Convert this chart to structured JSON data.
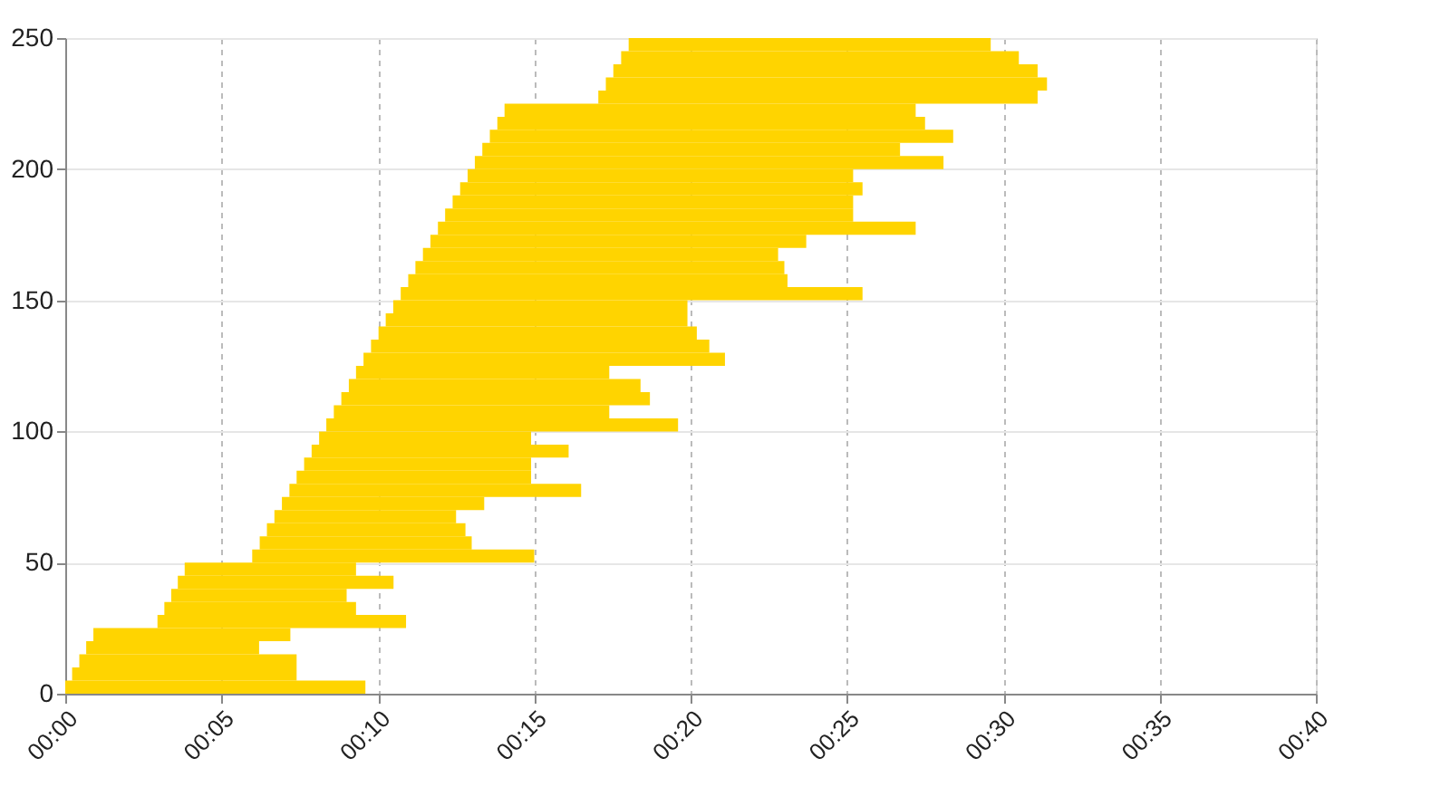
{
  "chart_data": {
    "type": "bar",
    "orientation": "horizontal",
    "color": "#ffd400",
    "x": [
      2.5,
      7.5,
      12.5,
      17.5,
      22.5,
      27.5,
      32.5,
      37.5,
      42.5,
      47.5,
      52.5,
      57.5,
      62.5,
      67.5,
      72.5,
      77.5,
      82.5,
      87.5,
      92.5,
      97.5,
      102.5,
      107.5,
      112.5,
      117.5,
      122.5,
      127.5,
      132.5,
      137.5,
      142.5,
      147.5,
      152.5,
      157.5,
      162.5,
      167.5,
      172.5,
      177.5,
      182.5,
      187.5,
      192.5,
      197.5,
      202.5,
      207.5,
      212.5,
      217.5,
      222.5,
      227.5,
      232.5,
      237.5,
      242.5,
      247.5
    ],
    "base": [
      0,
      0.22,
      0.45,
      0.67,
      0.9,
      2.95,
      3.17,
      3.39,
      3.6,
      3.82,
      5.98,
      6.22,
      6.45,
      6.69,
      6.93,
      7.17,
      7.4,
      7.64,
      7.88,
      8.12,
      8.35,
      8.59,
      8.83,
      9.07,
      9.3,
      9.54,
      9.78,
      10.02,
      10.25,
      10.49,
      10.73,
      10.97,
      11.2,
      11.44,
      11.68,
      11.92,
      12.15,
      12.39,
      12.63,
      12.87,
      13.1,
      13.34,
      13.58,
      13.82,
      14.05,
      17.05,
      17.29,
      17.53,
      17.78,
      18.02
    ],
    "values": [
      9.6,
      7.18,
      6.95,
      5.53,
      6.3,
      7.95,
      6.13,
      5.61,
      6.9,
      5.48,
      9.02,
      6.78,
      6.35,
      5.81,
      6.47,
      9.33,
      7.5,
      7.26,
      8.22,
      6.78,
      11.25,
      8.81,
      9.87,
      9.33,
      8.1,
      11.56,
      10.82,
      10.18,
      9.65,
      9.41,
      14.77,
      12.13,
      11.8,
      11.36,
      12.02,
      15.28,
      13.05,
      12.81,
      12.87,
      12.33,
      14.99,
      13.36,
      14.82,
      13.68,
      13.15,
      14.05,
      14.11,
      13.57,
      12.72,
      11.58
    ],
    "xlim": [
      0,
      40
    ],
    "xticks": [
      {
        "value": 0,
        "label": "00:00"
      },
      {
        "value": 5,
        "label": "00:05"
      },
      {
        "value": 10,
        "label": "00:10"
      },
      {
        "value": 15,
        "label": "00:15"
      },
      {
        "value": 20,
        "label": "00:20"
      },
      {
        "value": 25,
        "label": "00:25"
      },
      {
        "value": 30,
        "label": "00:30"
      },
      {
        "value": 35,
        "label": "00:35"
      },
      {
        "value": 40,
        "label": "00:40"
      }
    ],
    "ylim": [
      0,
      250
    ],
    "yticks": [
      0,
      50,
      100,
      150,
      200,
      250
    ],
    "grid": true
  }
}
